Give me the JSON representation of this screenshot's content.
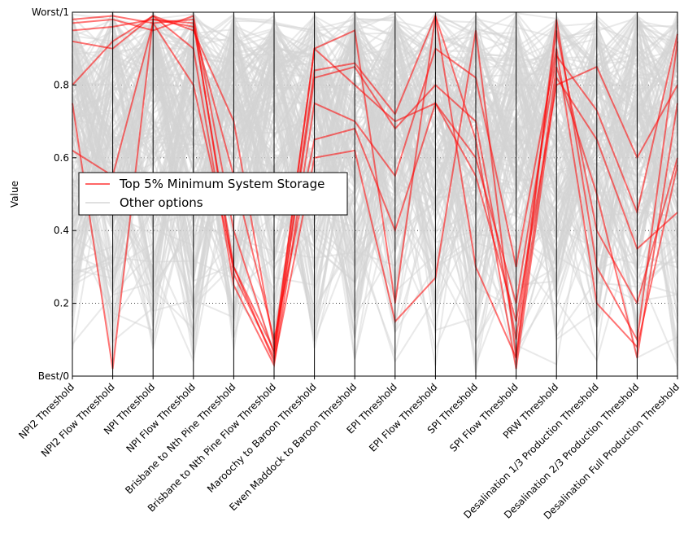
{
  "chart_data": {
    "type": "parallel-coordinates",
    "title": "",
    "ylabel": "Value",
    "ylim": [
      0,
      1
    ],
    "y_ticks": [
      {
        "value": 0,
        "label": "Best/0"
      },
      {
        "value": 0.2,
        "label": "0.2"
      },
      {
        "value": 0.4,
        "label": "0.4"
      },
      {
        "value": 0.6,
        "label": "0.6"
      },
      {
        "value": 0.8,
        "label": "0.8"
      },
      {
        "value": 1,
        "label": "Worst/1"
      }
    ],
    "grid": "horizontal dotted",
    "axes": [
      "NPI2 Threshold",
      "NPI2 Flow Threshold",
      "NPI Threshold",
      "NPI Flow Threshold",
      "Brisbane to Nth Pine Threshold",
      "Brisbane to Nth Pine Flow Threshold",
      "Maroochy to Baroon Threshold",
      "Ewen Maddock to Baroon Threshold",
      "EPI Threshold",
      "EPI Flow Threshold",
      "SPI Threshold",
      "SPI Flow Threshold",
      "PRW Threshold",
      "Desalination 1/3 Production Threshold",
      "Desalination 2/3 Production Threshold",
      "Desalination Full Production Threshold"
    ],
    "legend": {
      "placement": "center-left",
      "entries": [
        {
          "label": "Top 5% Minimum System Storage",
          "color": "#ff0000"
        },
        {
          "label": "Other options",
          "color": "#d3d3d3"
        }
      ]
    },
    "series": [
      {
        "name": "Top 5% Minimum System Storage",
        "color": "#ff0000",
        "lines": [
          [
            0.75,
            0.02,
            0.98,
            0.97,
            0.3,
            0.04,
            0.6,
            0.62,
            0.15,
            0.27,
            0.95,
            0.05,
            0.98,
            0.3,
            0.1,
            0.92
          ],
          [
            0.62,
            0.55,
            0.97,
            0.98,
            0.28,
            0.05,
            0.82,
            0.85,
            0.68,
            0.8,
            0.7,
            0.1,
            0.95,
            0.4,
            0.2,
            0.6
          ],
          [
            0.92,
            0.9,
            0.99,
            0.95,
            0.7,
            0.08,
            0.9,
            0.8,
            0.7,
            0.75,
            0.6,
            0.2,
            0.88,
            0.73,
            0.45,
            0.94
          ],
          [
            0.97,
            0.98,
            0.95,
            0.99,
            0.4,
            0.06,
            0.84,
            0.86,
            0.72,
            0.99,
            0.3,
            0.05,
            0.85,
            0.5,
            0.05,
            0.75
          ],
          [
            0.8,
            0.92,
            0.99,
            0.9,
            0.25,
            0.03,
            0.75,
            0.7,
            0.55,
            0.9,
            0.82,
            0.3,
            0.9,
            0.2,
            0.08,
            0.58
          ],
          [
            0.95,
            0.96,
            0.98,
            0.96,
            0.55,
            0.1,
            0.65,
            0.68,
            0.4,
            0.75,
            0.55,
            0.15,
            0.8,
            0.85,
            0.6,
            0.8
          ],
          [
            0.98,
            0.99,
            0.97,
            0.8,
            0.3,
            0.07,
            0.9,
            0.95,
            0.2,
            0.99,
            0.65,
            0.02,
            0.82,
            0.65,
            0.35,
            0.45
          ]
        ]
      },
      {
        "name": "Other options",
        "color": "#d3d3d3",
        "lines": []
      }
    ]
  }
}
